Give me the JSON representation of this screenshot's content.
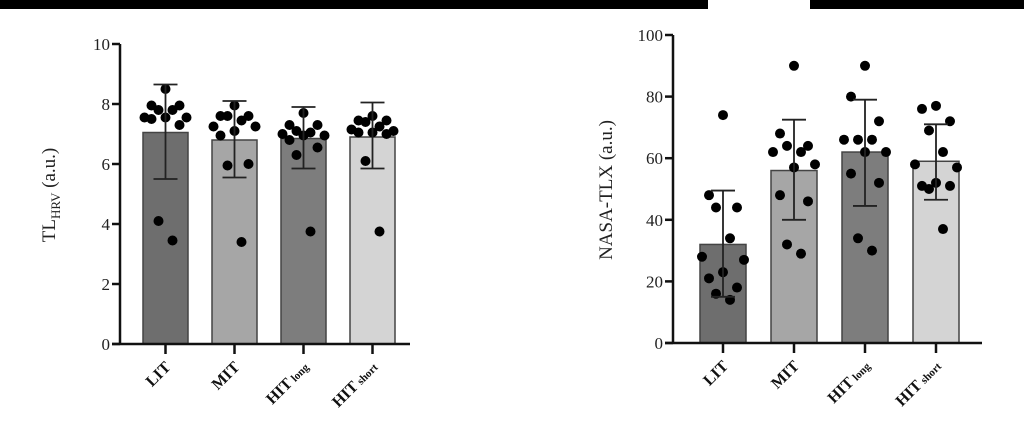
{
  "chart_data": [
    {
      "type": "bar",
      "title": "",
      "xlabel": "",
      "ylabel": "TL_HRV (a.u.)",
      "ylabel_main": "TL",
      "ylabel_sub": "HRV",
      "ylabel_suffix": " (a.u.)",
      "ylim": [
        0,
        10
      ],
      "yticks": [
        0,
        2,
        4,
        6,
        8,
        10
      ],
      "grid": false,
      "categories": [
        "LIT",
        "MIT",
        "HIT_long",
        "HIT_short"
      ],
      "category_labels": [
        {
          "main": "LIT",
          "sub": ""
        },
        {
          "main": "MIT",
          "sub": ""
        },
        {
          "main": "HIT",
          "sub": "long"
        },
        {
          "main": "HIT",
          "sub": "short"
        }
      ],
      "values": [
        7.05,
        6.8,
        6.85,
        6.9
      ],
      "error_low": [
        5.5,
        5.55,
        5.85,
        5.85
      ],
      "error_high": [
        8.65,
        8.1,
        7.9,
        8.05
      ],
      "bar_colors": [
        "#6e6e6e",
        "#a6a6a6",
        "#7d7d7d",
        "#d4d4d4"
      ],
      "points": [
        [
          8.5,
          7.95,
          7.95,
          7.8,
          7.8,
          7.55,
          7.55,
          7.55,
          7.5,
          7.3,
          4.1,
          3.45
        ],
        [
          7.95,
          7.6,
          7.6,
          7.6,
          7.45,
          7.25,
          7.25,
          7.1,
          6.95,
          6.0,
          5.95,
          3.4
        ],
        [
          7.7,
          7.3,
          7.3,
          7.1,
          7.05,
          7.0,
          6.95,
          6.95,
          6.8,
          6.55,
          6.3,
          3.75
        ],
        [
          7.6,
          7.45,
          7.45,
          7.4,
          7.25,
          7.15,
          7.1,
          7.05,
          7.05,
          7.0,
          6.1,
          3.75
        ]
      ]
    },
    {
      "type": "bar",
      "title": "",
      "xlabel": "",
      "ylabel": "NASA-TLX (a.u.)",
      "ylim": [
        0,
        100
      ],
      "yticks": [
        0,
        20,
        40,
        60,
        80,
        100
      ],
      "grid": false,
      "categories": [
        "LIT",
        "MIT",
        "HIT_long",
        "HIT_short"
      ],
      "category_labels": [
        {
          "main": "LIT",
          "sub": ""
        },
        {
          "main": "MIT",
          "sub": ""
        },
        {
          "main": "HIT",
          "sub": "long"
        },
        {
          "main": "HIT",
          "sub": "short"
        }
      ],
      "values": [
        32,
        56,
        62,
        59
      ],
      "error_low": [
        15,
        40,
        44.5,
        46.5
      ],
      "error_high": [
        49.5,
        72.5,
        79,
        71
      ],
      "bar_colors": [
        "#6e6e6e",
        "#a6a6a6",
        "#7d7d7d",
        "#d4d4d4"
      ],
      "points": [
        [
          74,
          48,
          44,
          44,
          34,
          28,
          27,
          23,
          21,
          18,
          16,
          14
        ],
        [
          90,
          68,
          64,
          64,
          62,
          62,
          58,
          57,
          48,
          46,
          32,
          29
        ],
        [
          90,
          80,
          72,
          66,
          66,
          66,
          62,
          62,
          55,
          52,
          34,
          30
        ],
        [
          77,
          76,
          72,
          69,
          62,
          58,
          57,
          52,
          51,
          51,
          50,
          37
        ]
      ]
    }
  ]
}
